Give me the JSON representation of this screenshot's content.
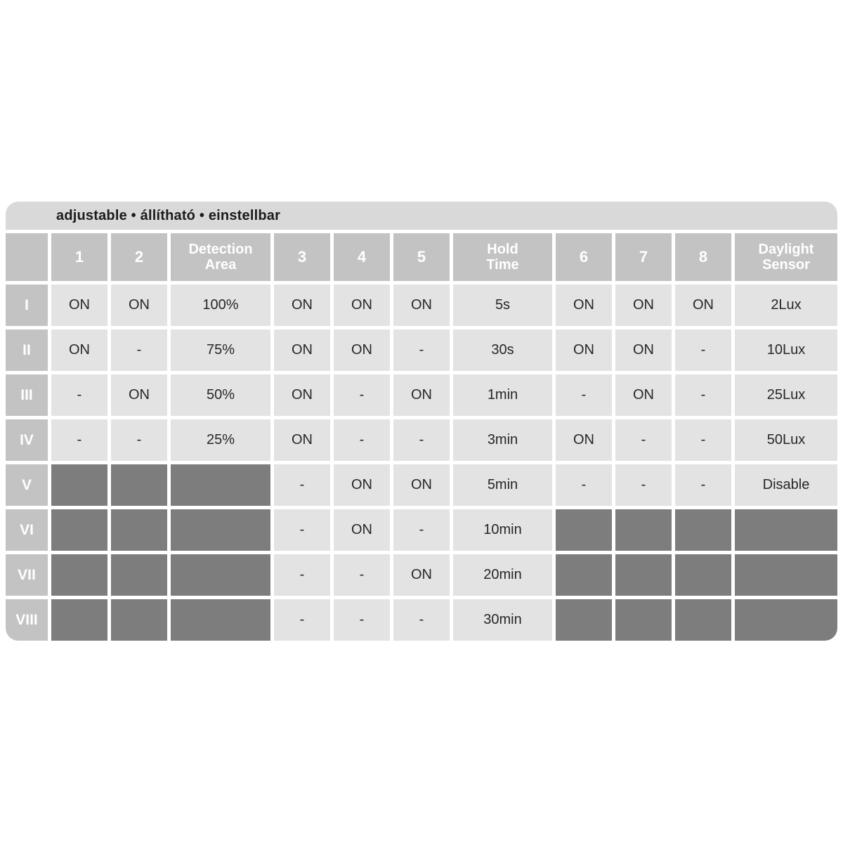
{
  "title_bar": {
    "text": "adjustable • állítható • einstellbar"
  },
  "table": {
    "columns": [
      "1",
      "2",
      "Detection Area",
      "3",
      "4",
      "5",
      "Hold Time",
      "6",
      "7",
      "8",
      "Daylight Sensor"
    ],
    "rows": [
      {
        "label": "I",
        "cells": [
          "ON",
          "ON",
          "100%",
          "ON",
          "ON",
          "ON",
          "5s",
          "ON",
          "ON",
          "ON",
          "2Lux"
        ]
      },
      {
        "label": "II",
        "cells": [
          "ON",
          "-",
          "75%",
          "ON",
          "ON",
          "-",
          "30s",
          "ON",
          "ON",
          "-",
          "10Lux"
        ]
      },
      {
        "label": "III",
        "cells": [
          "-",
          "ON",
          "50%",
          "ON",
          "-",
          "ON",
          "1min",
          "-",
          "ON",
          "-",
          "25Lux"
        ]
      },
      {
        "label": "IV",
        "cells": [
          "-",
          "-",
          "25%",
          "ON",
          "-",
          "-",
          "3min",
          "ON",
          "-",
          "-",
          "50Lux"
        ]
      },
      {
        "label": "V",
        "cells": [
          null,
          null,
          null,
          "-",
          "ON",
          "ON",
          "5min",
          "-",
          "-",
          "-",
          "Disable"
        ]
      },
      {
        "label": "VI",
        "cells": [
          null,
          null,
          null,
          "-",
          "ON",
          "-",
          "10min",
          null,
          null,
          null,
          null
        ]
      },
      {
        "label": "VII",
        "cells": [
          null,
          null,
          null,
          "-",
          "-",
          "ON",
          "20min",
          null,
          null,
          null,
          null
        ]
      },
      {
        "label": "VIII",
        "cells": [
          null,
          null,
          null,
          "-",
          "-",
          "-",
          "30min",
          null,
          null,
          null,
          null
        ]
      }
    ]
  },
  "colors": {
    "title_bar_bg": "#d9d9d9",
    "header_bg": "#c3c3c3",
    "cell_bg": "#e3e3e3",
    "disabled_bg": "#7d7d7d",
    "gap": "#ffffff",
    "title_text": "#1c1c1c",
    "header_text": "#ffffff",
    "cell_text": "#272727"
  }
}
